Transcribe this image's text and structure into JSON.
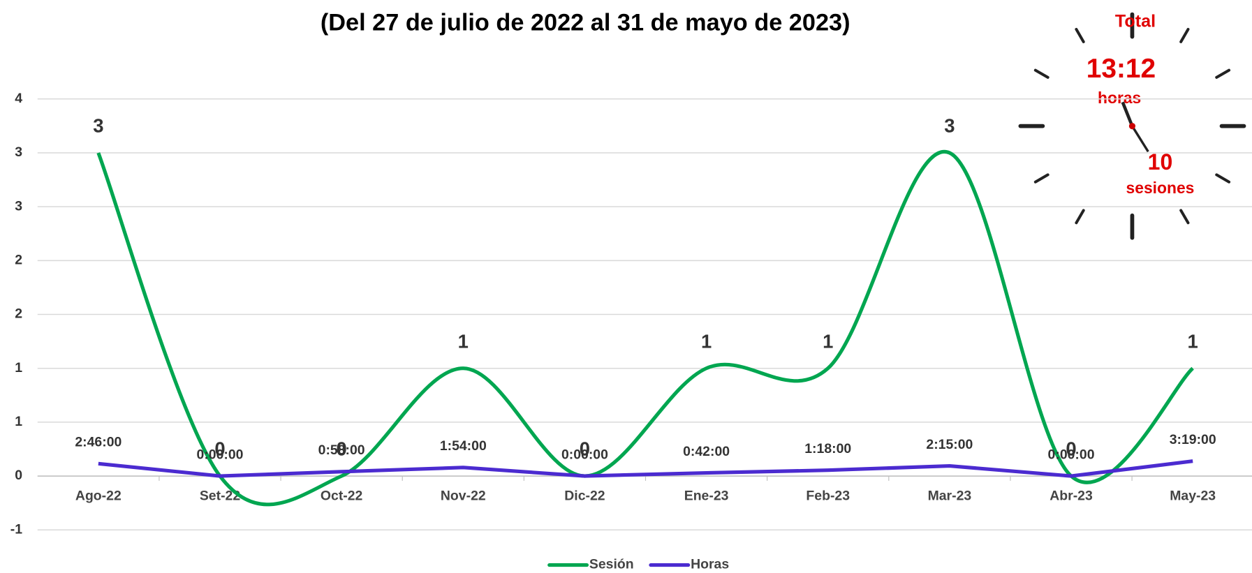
{
  "chart_data": {
    "type": "line",
    "title": "(Del 27 de julio  de 2022 al 31 de mayo de 2023)",
    "categories": [
      "Ago-22",
      "Set-22",
      "Oct-22",
      "Nov-22",
      "Dic-22",
      "Ene-23",
      "Feb-23",
      "Mar-23",
      "Abr-23",
      "May-23"
    ],
    "series": [
      {
        "name": "Sesión",
        "color": "#00a650",
        "smooth": true,
        "values": [
          3,
          0,
          0,
          1,
          0,
          1,
          1,
          3,
          0,
          1
        ]
      },
      {
        "name": "Horas",
        "color": "#4b2bd0",
        "smooth": false,
        "values": [
          0.11528,
          0,
          0.04028,
          0.07917,
          0,
          0.02917,
          0.05417,
          0.09375,
          0,
          0.13819
        ],
        "value_labels": [
          "2:46:00",
          "0:00:00",
          "0:58:00",
          "1:54:00",
          "0:00:00",
          "0:42:00",
          "1:18:00",
          "2:15:00",
          "0:00:00",
          "3:19:00"
        ]
      }
    ],
    "ylim": [
      -0.5,
      3.5
    ],
    "yticks": [
      {
        "value": -0.5,
        "label": "-1"
      },
      0,
      {
        "value": 0.5,
        "label": "1"
      },
      1,
      {
        "value": 1.5,
        "label": "2"
      },
      2,
      {
        "value": 2.5,
        "label": "3"
      },
      3,
      {
        "value": 3.5,
        "label": "4"
      }
    ],
    "grid": true,
    "legend": "bottom",
    "annotations": [
      "Total",
      "13:12",
      "horas",
      "10",
      "sesiones"
    ]
  }
}
